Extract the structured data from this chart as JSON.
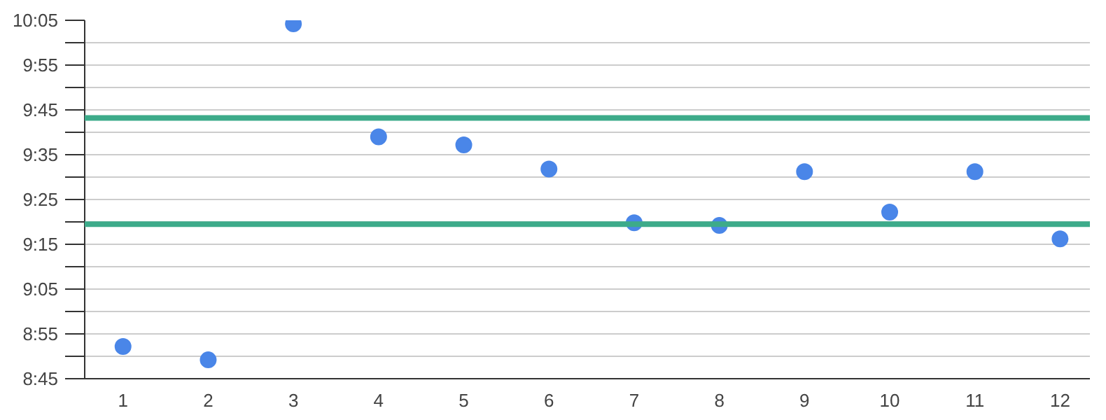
{
  "chart_data": {
    "type": "scatter",
    "x": [
      1,
      2,
      3,
      4,
      5,
      6,
      7,
      8,
      9,
      10,
      11,
      12
    ],
    "series": [
      {
        "color": "#4a86e8",
        "values": [
          8.87,
          8.82,
          10.07,
          9.65,
          9.62,
          9.53,
          9.33,
          9.32,
          9.52,
          9.37,
          9.52,
          9.27
        ]
      }
    ],
    "marker": "circle",
    "grid": "y",
    "xlim": [
      0.55,
      12.35
    ],
    "xticks": [
      1,
      2,
      3,
      4,
      5,
      6,
      7,
      8,
      9,
      10,
      11,
      12
    ],
    "ylim": [
      8.75,
      10.0833
    ],
    "yticks": [
      {
        "value": 8.75,
        "label": "8:45"
      },
      {
        "value": 8.8333,
        "label": null
      },
      {
        "value": 8.9167,
        "label": "8:55"
      },
      {
        "value": 9.0,
        "label": null
      },
      {
        "value": 9.0833,
        "label": "9:05"
      },
      {
        "value": 9.1667,
        "label": null
      },
      {
        "value": 9.25,
        "label": "9:15"
      },
      {
        "value": 9.3333,
        "label": null
      },
      {
        "value": 9.4167,
        "label": "9:25"
      },
      {
        "value": 9.5,
        "label": null
      },
      {
        "value": 9.5833,
        "label": "9:35"
      },
      {
        "value": 9.6667,
        "label": null
      },
      {
        "value": 9.75,
        "label": "9:45"
      },
      {
        "value": 9.8333,
        "label": null
      },
      {
        "value": 9.9167,
        "label": "9:55"
      },
      {
        "value": 10.0,
        "label": null
      },
      {
        "value": 10.0833,
        "label": "10:05"
      }
    ],
    "ref_lines": [
      {
        "axis": "y",
        "value": 9.72,
        "color": "#3dab8a"
      },
      {
        "axis": "y",
        "value": 9.325,
        "color": "#3dab8a"
      }
    ]
  }
}
